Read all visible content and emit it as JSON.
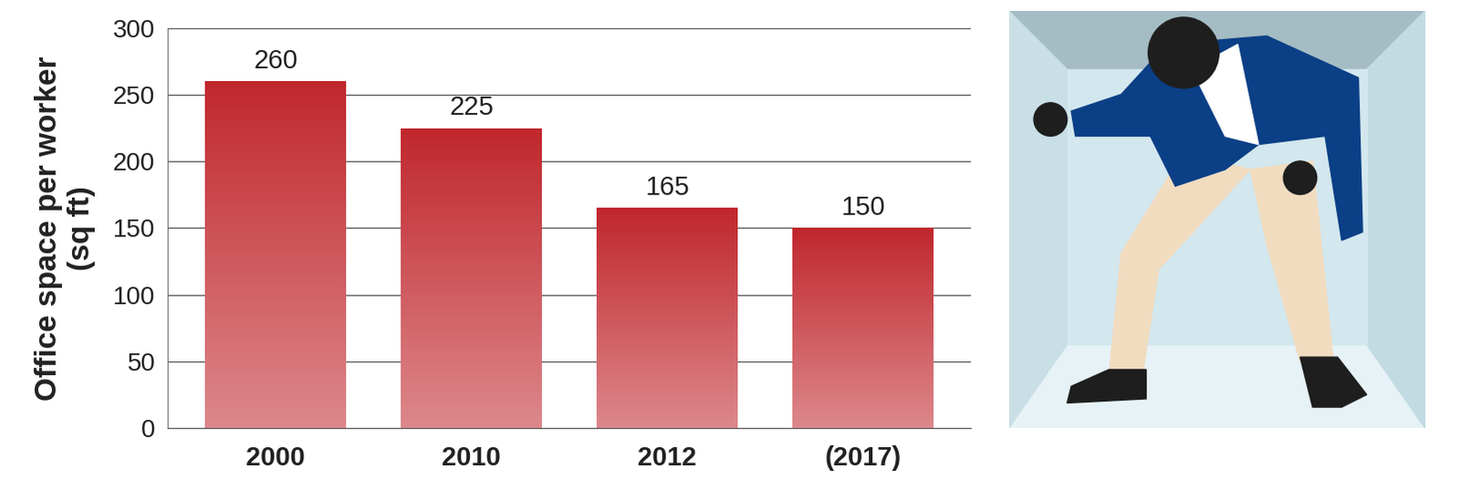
{
  "chart_data": {
    "type": "bar",
    "y_label": "Office space per worker\n(sq ft)",
    "categories": [
      "2000",
      "2010",
      "2012",
      "(2017)"
    ],
    "values": [
      260,
      225,
      165,
      150
    ],
    "color": "#c0272d",
    "ylim": [
      0,
      300
    ],
    "yticks": [
      0,
      50,
      100,
      150,
      200,
      250,
      300
    ],
    "grid": true,
    "data_labels": true
  }
}
